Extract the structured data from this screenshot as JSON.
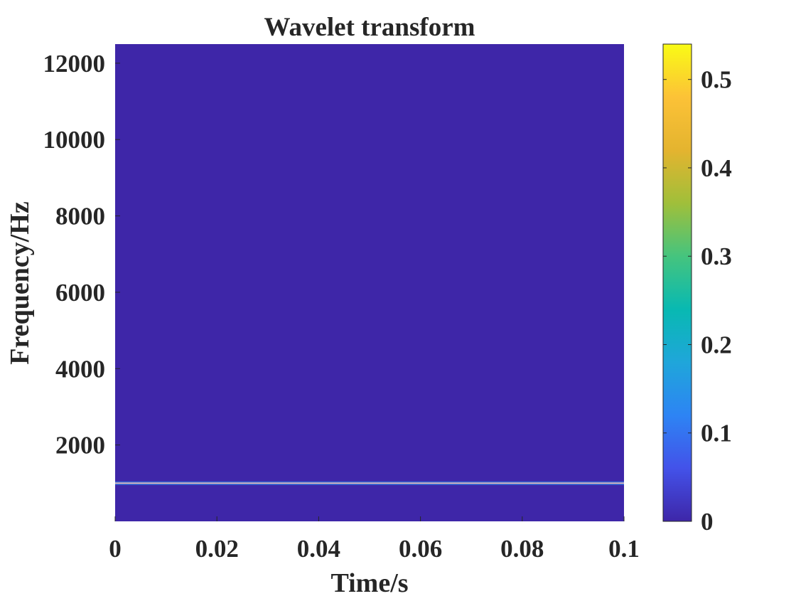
{
  "chart_data": {
    "type": "heatmap",
    "title": "Wavelet transform",
    "xlabel": "Time/s",
    "ylabel": "Frequency/Hz",
    "xlim": [
      0,
      0.1
    ],
    "ylim": [
      0,
      12500
    ],
    "x_ticks": [
      0,
      0.02,
      0.04,
      0.06,
      0.08,
      0.1
    ],
    "x_tick_labels": [
      "0",
      "0.02",
      "0.04",
      "0.06",
      "0.08",
      "0.1"
    ],
    "y_ticks": [
      2000,
      4000,
      6000,
      8000,
      10000,
      12000
    ],
    "y_tick_labels": [
      "2000",
      "4000",
      "6000",
      "8000",
      "10000",
      "12000"
    ],
    "colorbar": {
      "colormap": "parula",
      "clim": [
        0,
        0.54
      ],
      "ticks": [
        0,
        0.1,
        0.2,
        0.3,
        0.4,
        0.5
      ],
      "tick_labels": [
        "0",
        "0.1",
        "0.2",
        "0.3",
        "0.4",
        "0.5"
      ]
    },
    "background_magnitude": 0.0,
    "ridge": {
      "frequency_hz": 1000,
      "t_start": 0,
      "t_end": 0.1,
      "peak_magnitude": 0.54
    },
    "grid": false
  },
  "colors": {
    "background_field": "#3e26a8",
    "ridge_core": "#f0c0b8",
    "ridge_glow": "#2a9df5",
    "colormap_stops": [
      "#3e26a8",
      "#4352e9",
      "#2d84f4",
      "#1fa6da",
      "#08b9b2",
      "#45c47e",
      "#a0bf3a",
      "#e4b42f",
      "#fcc237",
      "#f9fb15"
    ]
  }
}
